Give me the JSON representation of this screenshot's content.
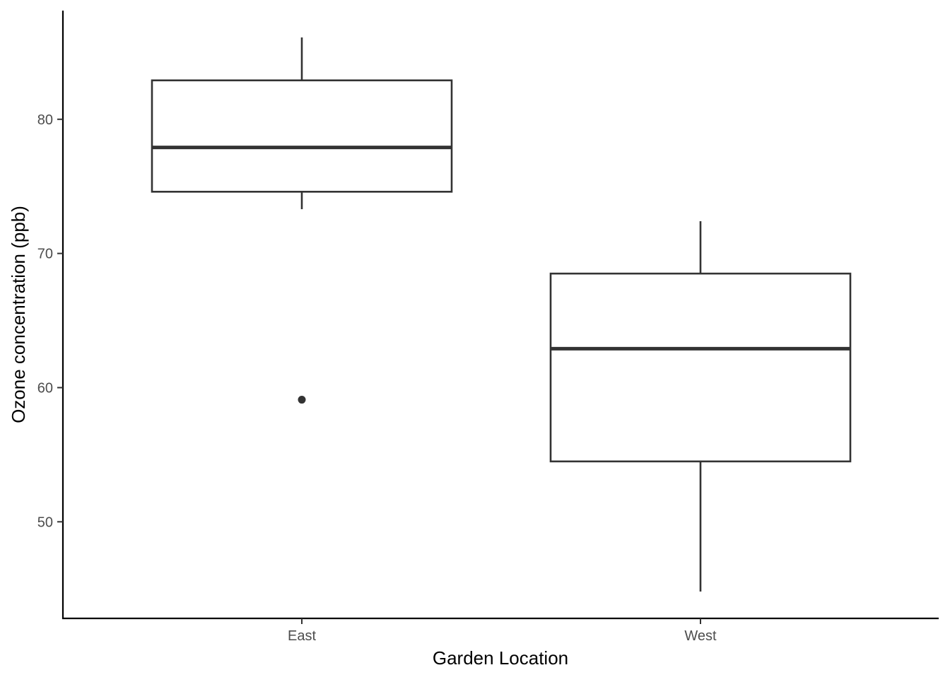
{
  "chart_data": {
    "type": "boxplot",
    "title": "",
    "xlabel": "Garden Location",
    "ylabel": "Ozone concentration (ppb)",
    "categories": [
      "East",
      "West"
    ],
    "ylim": [
      42.8,
      88.1
    ],
    "yticks": [
      50,
      60,
      70,
      80
    ],
    "ytick_labels": [
      "50",
      "60",
      "70",
      "80"
    ],
    "boxes": [
      {
        "category": "East",
        "whisker_low": 73.3,
        "q1": 74.6,
        "median": 77.9,
        "q3": 82.9,
        "whisker_high": 86.1,
        "outliers": [
          59.1
        ]
      },
      {
        "category": "West",
        "whisker_low": 44.8,
        "q1": 54.5,
        "median": 62.9,
        "q3": 68.5,
        "whisker_high": 72.4,
        "outliers": []
      }
    ],
    "grid": false,
    "legend": "none",
    "colors": {
      "box_stroke": "#333333",
      "box_fill": "#ffffff",
      "axis": "#000000",
      "tick_text": "#4d4d4d",
      "title_text": "#000000"
    }
  }
}
